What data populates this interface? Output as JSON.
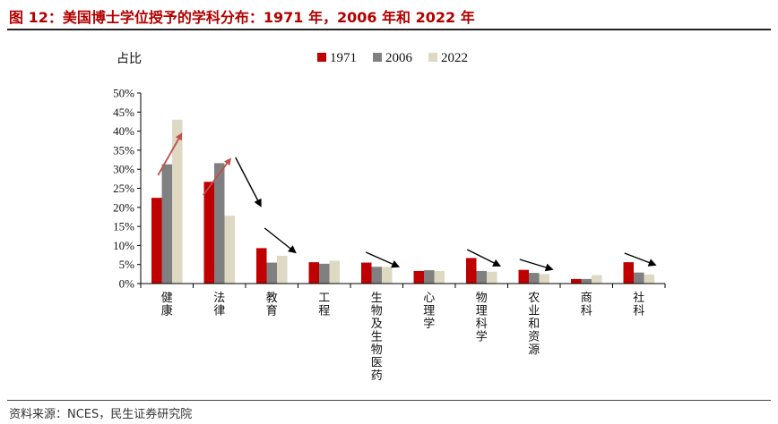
{
  "figure": {
    "title": "图 12：美国博士学位授予的学科分布：1971 年，2006 年和 2022 年",
    "source": "资料来源：NCES，民生证券研究院"
  },
  "colors": {
    "title": "#b30000",
    "s1971": "#c00000",
    "s2006": "#808080",
    "s2022": "#ddd9c3",
    "arrow_red": "#c0504d",
    "arrow_black": "#000000"
  },
  "chart_data": {
    "type": "bar",
    "ylabel": "占比",
    "ylim": [
      0,
      0.5
    ],
    "yticks": [
      "0%",
      "5%",
      "10%",
      "15%",
      "20%",
      "25%",
      "30%",
      "35%",
      "40%",
      "45%",
      "50%"
    ],
    "categories": [
      "健康",
      "法律",
      "教育",
      "工程",
      "生物及生物医药",
      "心理学",
      "物理科学",
      "农业和资源",
      "商科",
      "社科"
    ],
    "series": [
      {
        "name": "1971",
        "color": "#c00000",
        "values": [
          0.225,
          0.267,
          0.093,
          0.056,
          0.055,
          0.033,
          0.067,
          0.036,
          0.012,
          0.056
        ]
      },
      {
        "name": "2006",
        "color": "#808080",
        "values": [
          0.313,
          0.316,
          0.055,
          0.052,
          0.044,
          0.035,
          0.033,
          0.028,
          0.012,
          0.029
        ]
      },
      {
        "name": "2022",
        "color": "#ddd9c3",
        "values": [
          0.43,
          0.178,
          0.073,
          0.06,
          0.044,
          0.033,
          0.031,
          0.025,
          0.022,
          0.024
        ]
      }
    ],
    "legend_position": "top",
    "grid": false,
    "trend_arrows": [
      {
        "category": "健康",
        "direction": "up",
        "color": "red"
      },
      {
        "category": "法律",
        "direction": "up",
        "color": "red"
      },
      {
        "category": "法律",
        "direction": "down",
        "color": "black"
      },
      {
        "category": "教育",
        "direction": "down",
        "color": "black"
      },
      {
        "category": "生物及生物医药",
        "direction": "down",
        "color": "black"
      },
      {
        "category": "物理科学",
        "direction": "down",
        "color": "black"
      },
      {
        "category": "农业和资源",
        "direction": "down",
        "color": "black"
      },
      {
        "category": "社科",
        "direction": "down",
        "color": "black"
      }
    ]
  }
}
